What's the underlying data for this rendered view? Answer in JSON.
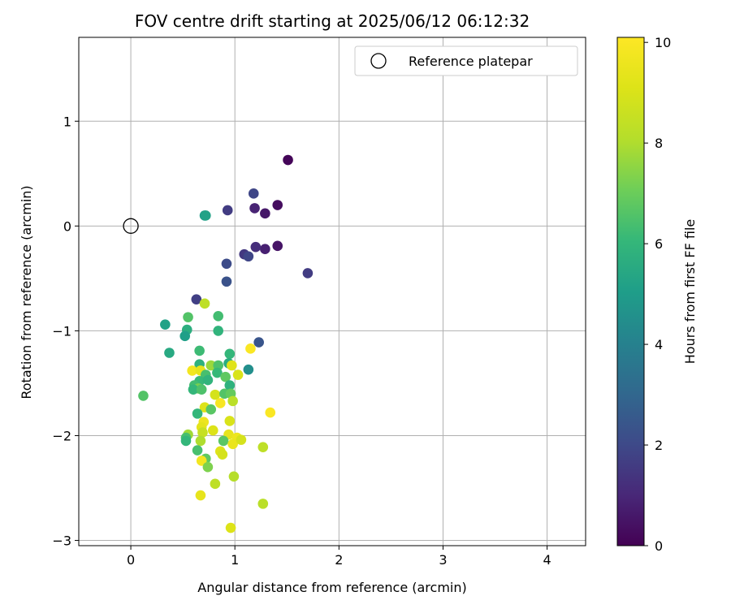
{
  "chart_data": {
    "type": "scatter",
    "title": "FOV centre drift starting at 2025/06/12 06:12:32",
    "xlabel": "Angular distance from reference (arcmin)",
    "ylabel": "Rotation from reference (arcmin)",
    "xlim": [
      -0.5,
      4.37
    ],
    "ylim": [
      -3.05,
      1.8
    ],
    "xticks": [
      0,
      1,
      2,
      3,
      4
    ],
    "yticks": [
      -3,
      -2,
      -1,
      0,
      1
    ],
    "grid": true,
    "legend": {
      "position": "top-right",
      "entries": [
        "Reference platepar"
      ]
    },
    "colorbar": {
      "label": "Hours from first FF file",
      "min": 0,
      "max": 10.1,
      "ticks": [
        0,
        2,
        4,
        6,
        8,
        10
      ],
      "colormap": "viridis"
    },
    "reference_point": {
      "x": 0,
      "y": 0
    },
    "points": [
      {
        "x": 1.51,
        "y": 0.63,
        "c": 0.1
      },
      {
        "x": 1.41,
        "y": 0.2,
        "c": 0.3
      },
      {
        "x": 1.29,
        "y": 0.12,
        "c": 0.6
      },
      {
        "x": 1.19,
        "y": 0.17,
        "c": 0.9
      },
      {
        "x": 1.18,
        "y": 0.31,
        "c": 1.9
      },
      {
        "x": 0.93,
        "y": 0.15,
        "c": 1.6
      },
      {
        "x": 1.41,
        "y": -0.19,
        "c": 0.5
      },
      {
        "x": 1.29,
        "y": -0.22,
        "c": 0.8
      },
      {
        "x": 1.2,
        "y": -0.2,
        "c": 1.2
      },
      {
        "x": 1.09,
        "y": -0.27,
        "c": 1.5
      },
      {
        "x": 1.13,
        "y": -0.29,
        "c": 1.9
      },
      {
        "x": 1.7,
        "y": -0.45,
        "c": 1.6
      },
      {
        "x": 0.92,
        "y": -0.36,
        "c": 2.1
      },
      {
        "x": 0.92,
        "y": -0.53,
        "c": 2.3
      },
      {
        "x": 0.63,
        "y": -0.7,
        "c": 1.7
      },
      {
        "x": 1.23,
        "y": -1.11,
        "c": 2.4
      },
      {
        "x": 1.13,
        "y": -1.37,
        "c": 4.5
      },
      {
        "x": 0.71,
        "y": 0.1,
        "c": 5.0
      },
      {
        "x": 0.72,
        "y": 0.1,
        "c": 5.2
      },
      {
        "x": 0.71,
        "y": -0.74,
        "c": 8.3
      },
      {
        "x": 0.55,
        "y": -0.87,
        "c": 6.6
      },
      {
        "x": 0.84,
        "y": -0.86,
        "c": 6.3
      },
      {
        "x": 0.33,
        "y": -0.94,
        "c": 5.2
      },
      {
        "x": 0.54,
        "y": -0.99,
        "c": 5.7
      },
      {
        "x": 0.52,
        "y": -1.05,
        "c": 5.1
      },
      {
        "x": 0.84,
        "y": -1.0,
        "c": 5.9
      },
      {
        "x": 0.37,
        "y": -1.21,
        "c": 5.5
      },
      {
        "x": 0.66,
        "y": -1.19,
        "c": 6.2
      },
      {
        "x": 0.95,
        "y": -1.22,
        "c": 6.0
      },
      {
        "x": 1.15,
        "y": -1.17,
        "c": 10.0
      },
      {
        "x": 0.66,
        "y": -1.32,
        "c": 5.8
      },
      {
        "x": 0.77,
        "y": -1.33,
        "c": 7.7
      },
      {
        "x": 0.84,
        "y": -1.33,
        "c": 6.5
      },
      {
        "x": 0.94,
        "y": -1.31,
        "c": 5.6
      },
      {
        "x": 0.97,
        "y": -1.33,
        "c": 9.2
      },
      {
        "x": 0.59,
        "y": -1.38,
        "c": 9.8
      },
      {
        "x": 0.67,
        "y": -1.38,
        "c": 9.4
      },
      {
        "x": 0.72,
        "y": -1.42,
        "c": 6.4
      },
      {
        "x": 0.83,
        "y": -1.4,
        "c": 6.1
      },
      {
        "x": 0.91,
        "y": -1.44,
        "c": 6.8
      },
      {
        "x": 1.03,
        "y": -1.42,
        "c": 9.0
      },
      {
        "x": 0.66,
        "y": -1.48,
        "c": 6.1
      },
      {
        "x": 0.74,
        "y": -1.47,
        "c": 5.9
      },
      {
        "x": 0.61,
        "y": -1.52,
        "c": 6.3
      },
      {
        "x": 0.65,
        "y": -1.55,
        "c": 7.2
      },
      {
        "x": 0.6,
        "y": -1.56,
        "c": 6.0
      },
      {
        "x": 0.68,
        "y": -1.56,
        "c": 6.5
      },
      {
        "x": 0.95,
        "y": -1.52,
        "c": 5.8
      },
      {
        "x": 0.12,
        "y": -1.62,
        "c": 6.6
      },
      {
        "x": 0.81,
        "y": -1.61,
        "c": 8.9
      },
      {
        "x": 0.9,
        "y": -1.6,
        "c": 6.6
      },
      {
        "x": 0.96,
        "y": -1.6,
        "c": 6.9
      },
      {
        "x": 0.86,
        "y": -1.69,
        "c": 9.9
      },
      {
        "x": 0.98,
        "y": -1.67,
        "c": 8.2
      },
      {
        "x": 0.71,
        "y": -1.73,
        "c": 9.1
      },
      {
        "x": 0.77,
        "y": -1.75,
        "c": 6.7
      },
      {
        "x": 0.64,
        "y": -1.79,
        "c": 6.0
      },
      {
        "x": 1.34,
        "y": -1.78,
        "c": 10.0
      },
      {
        "x": 0.7,
        "y": -1.87,
        "c": 9.6
      },
      {
        "x": 0.95,
        "y": -1.86,
        "c": 9.0
      },
      {
        "x": 0.68,
        "y": -1.92,
        "c": 9.3
      },
      {
        "x": 0.79,
        "y": -1.95,
        "c": 9.1
      },
      {
        "x": 0.55,
        "y": -1.99,
        "c": 7.8
      },
      {
        "x": 0.69,
        "y": -1.97,
        "c": 8.5
      },
      {
        "x": 0.94,
        "y": -1.99,
        "c": 9.4
      },
      {
        "x": 0.53,
        "y": -2.02,
        "c": 6.4
      },
      {
        "x": 1.02,
        "y": -2.02,
        "c": 9.6
      },
      {
        "x": 0.53,
        "y": -2.05,
        "c": 6.0
      },
      {
        "x": 0.67,
        "y": -2.05,
        "c": 8.0
      },
      {
        "x": 0.89,
        "y": -2.05,
        "c": 6.7
      },
      {
        "x": 0.98,
        "y": -2.08,
        "c": 9.5
      },
      {
        "x": 1.06,
        "y": -2.04,
        "c": 8.9
      },
      {
        "x": 1.27,
        "y": -2.11,
        "c": 8.3
      },
      {
        "x": 0.64,
        "y": -2.14,
        "c": 6.4
      },
      {
        "x": 0.86,
        "y": -2.15,
        "c": 9.2
      },
      {
        "x": 0.88,
        "y": -2.18,
        "c": 8.9
      },
      {
        "x": 0.72,
        "y": -2.22,
        "c": 6.8
      },
      {
        "x": 0.68,
        "y": -2.24,
        "c": 9.8
      },
      {
        "x": 0.74,
        "y": -2.3,
        "c": 7.3
      },
      {
        "x": 0.99,
        "y": -2.39,
        "c": 8.1
      },
      {
        "x": 0.81,
        "y": -2.46,
        "c": 8.3
      },
      {
        "x": 0.67,
        "y": -2.57,
        "c": 9.4
      },
      {
        "x": 1.27,
        "y": -2.65,
        "c": 8.2
      },
      {
        "x": 0.96,
        "y": -2.88,
        "c": 9.1
      }
    ]
  }
}
